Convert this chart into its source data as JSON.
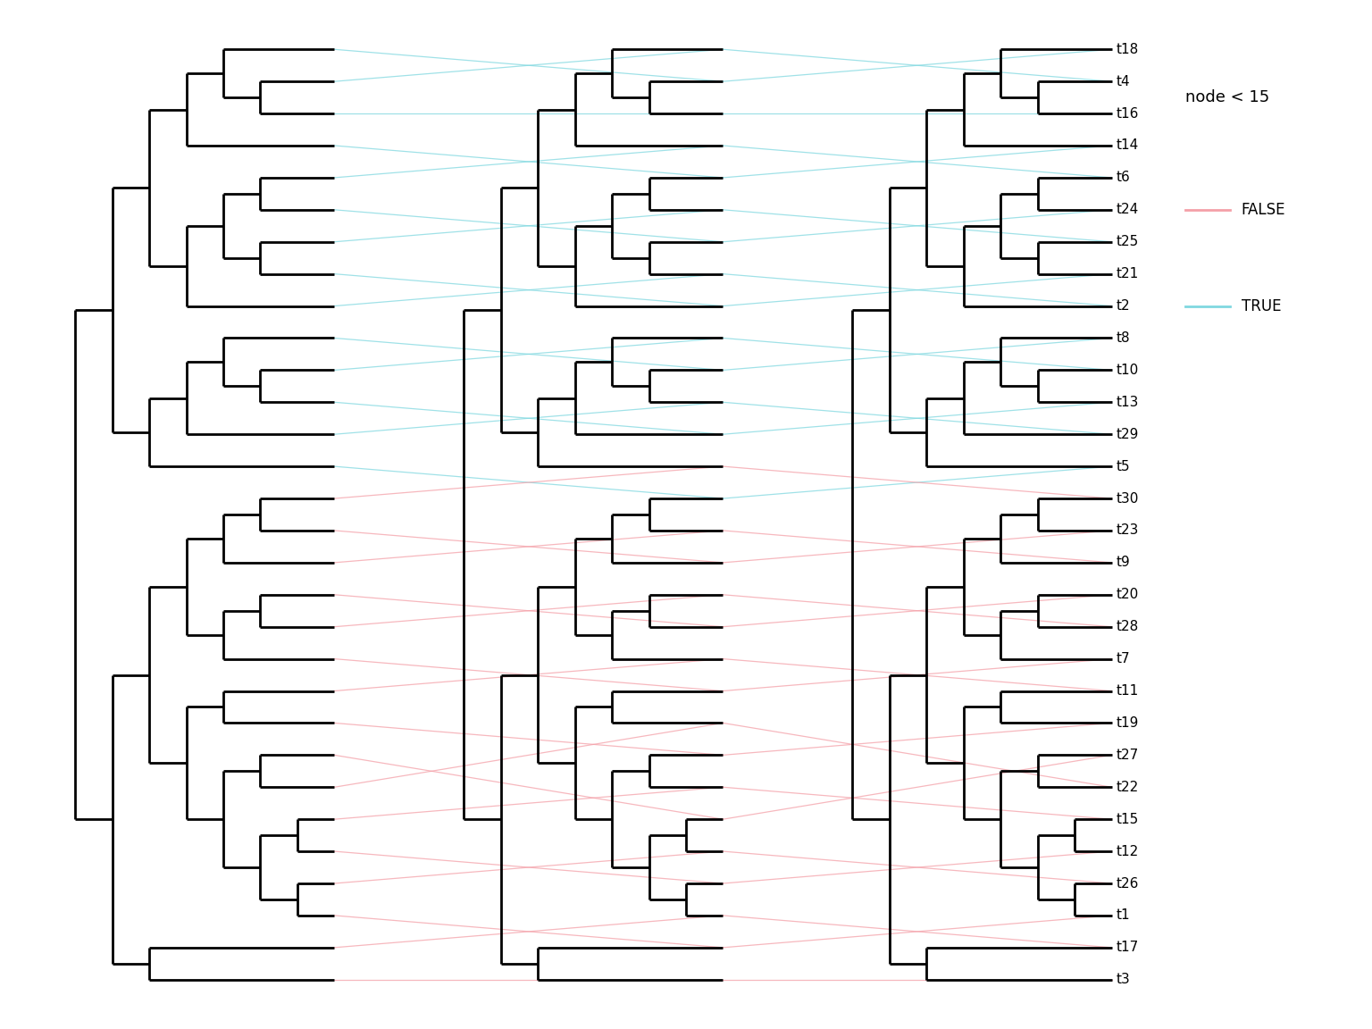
{
  "bg_color": "#FFFFFF",
  "tree_color": "#000000",
  "line_color_false": "#F4A0A8",
  "line_color_true": "#80D8E0",
  "legend_title": "node < 15",
  "legend_false": "FALSE",
  "legend_true": "TRUE",
  "label_fontsize": 11,
  "legend_title_fontsize": 13,
  "legend_item_fontsize": 12,
  "tree_lw": 2.0,
  "line_lw": 0.9,
  "line_alpha": 0.75,
  "tips_tree1": [
    "t18",
    "t4",
    "t16",
    "t14",
    "t6",
    "t24",
    "t25",
    "t21",
    "t2",
    "t8",
    "t10",
    "t13",
    "t29",
    "t5",
    "t30",
    "t23",
    "t9",
    "t20",
    "t28",
    "t7",
    "t11",
    "t19",
    "t27",
    "t22",
    "t15",
    "t12",
    "t26",
    "t1",
    "t17",
    "t3"
  ],
  "tips_tree2": [
    "t4",
    "t18",
    "t16",
    "t6",
    "t14",
    "t25",
    "t24",
    "t2",
    "t21",
    "t10",
    "t8",
    "t29",
    "t13",
    "t30",
    "t5",
    "t9",
    "t23",
    "t28",
    "t20",
    "t11",
    "t7",
    "t22",
    "t19",
    "t15",
    "t27",
    "t26",
    "t12",
    "t17",
    "t1",
    "t3"
  ],
  "tips_tree3": [
    "t18",
    "t4",
    "t16",
    "t14",
    "t6",
    "t24",
    "t25",
    "t21",
    "t2",
    "t8",
    "t10",
    "t13",
    "t29",
    "t5",
    "t30",
    "t23",
    "t9",
    "t20",
    "t28",
    "t7",
    "t11",
    "t19",
    "t27",
    "t22",
    "t15",
    "t12",
    "t26",
    "t1",
    "t17",
    "t3"
  ],
  "true_tips": [
    "t18",
    "t4",
    "t16",
    "t14",
    "t6",
    "t24",
    "t25",
    "t21",
    "t2",
    "t8",
    "t10",
    "t13",
    "t29",
    "t5"
  ],
  "false_tips": [
    "t30",
    "t23",
    "t9",
    "t20",
    "t28",
    "t7",
    "t11",
    "t19",
    "t27",
    "t22",
    "t15",
    "t12",
    "t26",
    "t1",
    "t17",
    "t3"
  ]
}
